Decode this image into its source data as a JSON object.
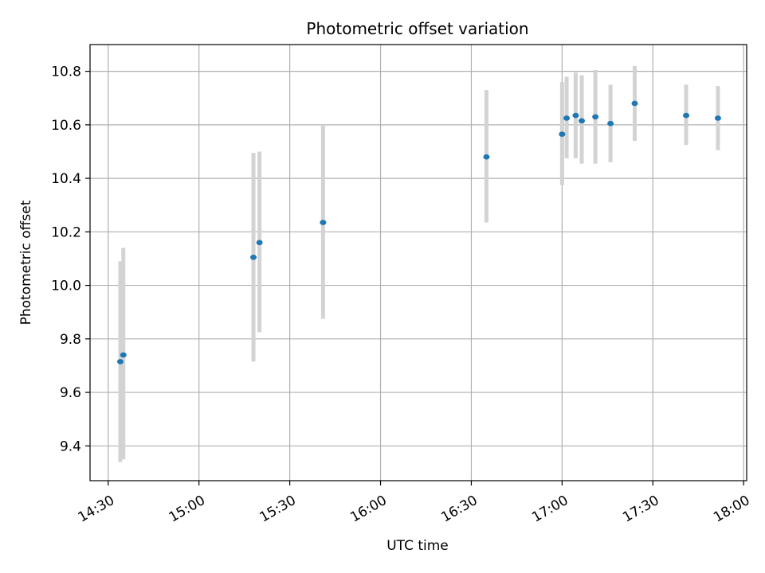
{
  "chart_data": {
    "type": "scatter",
    "title": "Photometric offset variation",
    "xlabel": "UTC time",
    "ylabel": "Photometric offset",
    "x_axis": "time",
    "xlim": [
      "14:24",
      "18:01"
    ],
    "ylim": [
      9.27,
      10.9
    ],
    "xticks": [
      "14:30",
      "15:00",
      "15:30",
      "16:00",
      "16:30",
      "17:00",
      "17:30",
      "18:00"
    ],
    "yticks": [
      9.4,
      9.6,
      9.8,
      10.0,
      10.2,
      10.4,
      10.6,
      10.8
    ],
    "grid": true,
    "colors": {
      "point": "#1f77b4",
      "errorbar": "#d3d3d3",
      "grid": "#b0b0b0"
    },
    "points": [
      {
        "x": "14:34",
        "y": 9.715,
        "ylow": 9.34,
        "yhigh": 10.09
      },
      {
        "x": "14:35",
        "y": 9.74,
        "ylow": 9.35,
        "yhigh": 10.14
      },
      {
        "x": "15:18",
        "y": 10.105,
        "ylow": 9.715,
        "yhigh": 10.495
      },
      {
        "x": "15:20",
        "y": 10.16,
        "ylow": 9.825,
        "yhigh": 10.5
      },
      {
        "x": "15:41",
        "y": 10.235,
        "ylow": 9.875,
        "yhigh": 10.6
      },
      {
        "x": "16:35",
        "y": 10.48,
        "ylow": 10.235,
        "yhigh": 10.73
      },
      {
        "x": "17:00",
        "y": 10.565,
        "ylow": 10.375,
        "yhigh": 10.76
      },
      {
        "x": "17:01.5",
        "y": 10.625,
        "ylow": 10.475,
        "yhigh": 10.78
      },
      {
        "x": "17:04.5",
        "y": 10.635,
        "ylow": 10.475,
        "yhigh": 10.795
      },
      {
        "x": "17:06.5",
        "y": 10.615,
        "ylow": 10.455,
        "yhigh": 10.785
      },
      {
        "x": "17:11",
        "y": 10.63,
        "ylow": 10.455,
        "yhigh": 10.805
      },
      {
        "x": "17:16",
        "y": 10.605,
        "ylow": 10.46,
        "yhigh": 10.75
      },
      {
        "x": "17:24",
        "y": 10.68,
        "ylow": 10.54,
        "yhigh": 10.82
      },
      {
        "x": "17:41",
        "y": 10.635,
        "ylow": 10.525,
        "yhigh": 10.75
      },
      {
        "x": "17:51.5",
        "y": 10.625,
        "ylow": 10.505,
        "yhigh": 10.745
      }
    ]
  }
}
